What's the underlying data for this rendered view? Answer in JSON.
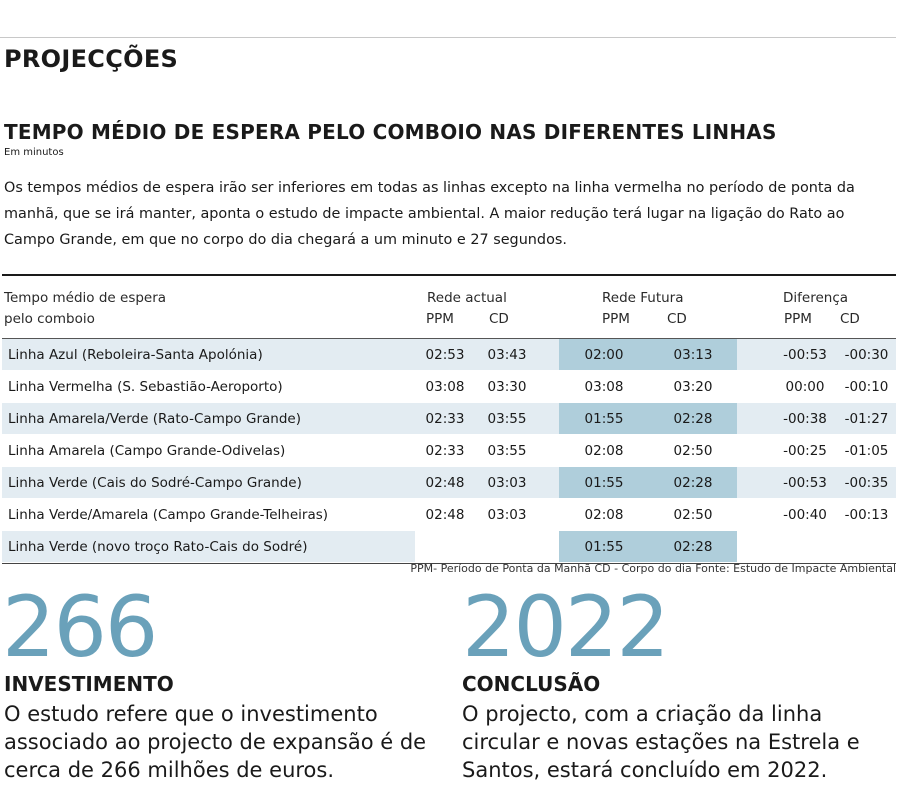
{
  "section_title": "PROJECÇÕES",
  "chart_title": "TEMPO MÉDIO DE ESPERA PELO COMBOIO NAS DIFERENTES LINHAS",
  "unit": "Em minutos",
  "intro": "Os tempos médios de espera irão ser inferiores em todas as linhas excepto na linha vermelha no período de ponta da manhã, que se irá manter, aponta o estudo de impacte ambiental. A maior redução terá lugar na ligação do Rato ao Campo Grande, em que no corpo do dia chegará a um minuto e 27 segundos.",
  "table": {
    "header": {
      "label_line1": "Tempo médio de espera",
      "label_line2": "pelo comboio",
      "group_actual": "Rede actual",
      "group_future": "Rede Futura",
      "group_diff": "Diferença",
      "ppm": "PPM",
      "cd": "CD"
    },
    "rows": [
      {
        "line": "Linha Azul (Reboleira-Santa Apolónia)",
        "actual_ppm": "02:53",
        "actual_cd": "03:43",
        "future_ppm": "02:00",
        "future_cd": "03:13",
        "diff_ppm": "-00:53",
        "diff_cd": "-00:30"
      },
      {
        "line": "Linha Vermelha (S. Sebastião-Aeroporto)",
        "actual_ppm": "03:08",
        "actual_cd": "03:30",
        "future_ppm": "03:08",
        "future_cd": "03:20",
        "diff_ppm": "00:00",
        "diff_cd": "-00:10"
      },
      {
        "line": "Linha Amarela/Verde (Rato-Campo Grande)",
        "actual_ppm": "02:33",
        "actual_cd": "03:55",
        "future_ppm": "01:55",
        "future_cd": "02:28",
        "diff_ppm": "-00:38",
        "diff_cd": "-01:27"
      },
      {
        "line": "Linha Amarela (Campo Grande-Odivelas)",
        "actual_ppm": "02:33",
        "actual_cd": "03:55",
        "future_ppm": "02:08",
        "future_cd": "02:50",
        "diff_ppm": "-00:25",
        "diff_cd": "-01:05"
      },
      {
        "line": "Linha Verde (Cais do Sodré-Campo Grande)",
        "actual_ppm": "02:48",
        "actual_cd": "03:03",
        "future_ppm": "01:55",
        "future_cd": "02:28",
        "diff_ppm": "-00:53",
        "diff_cd": "-00:35"
      },
      {
        "line": "Linha Verde/Amarela (Campo Grande-Telheiras)",
        "actual_ppm": "02:48",
        "actual_cd": "03:03",
        "future_ppm": "02:08",
        "future_cd": "02:50",
        "diff_ppm": "-00:40",
        "diff_cd": "-00:13"
      },
      {
        "line": "Linha Verde (novo troço Rato-Cais do Sodré)",
        "actual_ppm": "",
        "actual_cd": "",
        "future_ppm": "01:55",
        "future_cd": "02:28",
        "diff_ppm": "",
        "diff_cd": ""
      }
    ]
  },
  "footnote": "PPM- Período de Ponta da Manhã  CD - Corpo do dia Fonte: Estudo de Impacte Ambiental",
  "stats": [
    {
      "number": "266",
      "label": "INVESTIMENTO",
      "text": "O estudo refere que o investimento associado ao projecto de expansão é de cerca de 266 milhões de euros."
    },
    {
      "number": "2022",
      "label": "CONCLUSÃO",
      "text": "O projecto, com a criação da linha circular e novas estações na Estrela e Santos, estará concluído em 2022."
    }
  ],
  "colors": {
    "accent": "#6aa1ba",
    "row_shade": "#e3ecf2",
    "future_shade": "#afcedb"
  }
}
